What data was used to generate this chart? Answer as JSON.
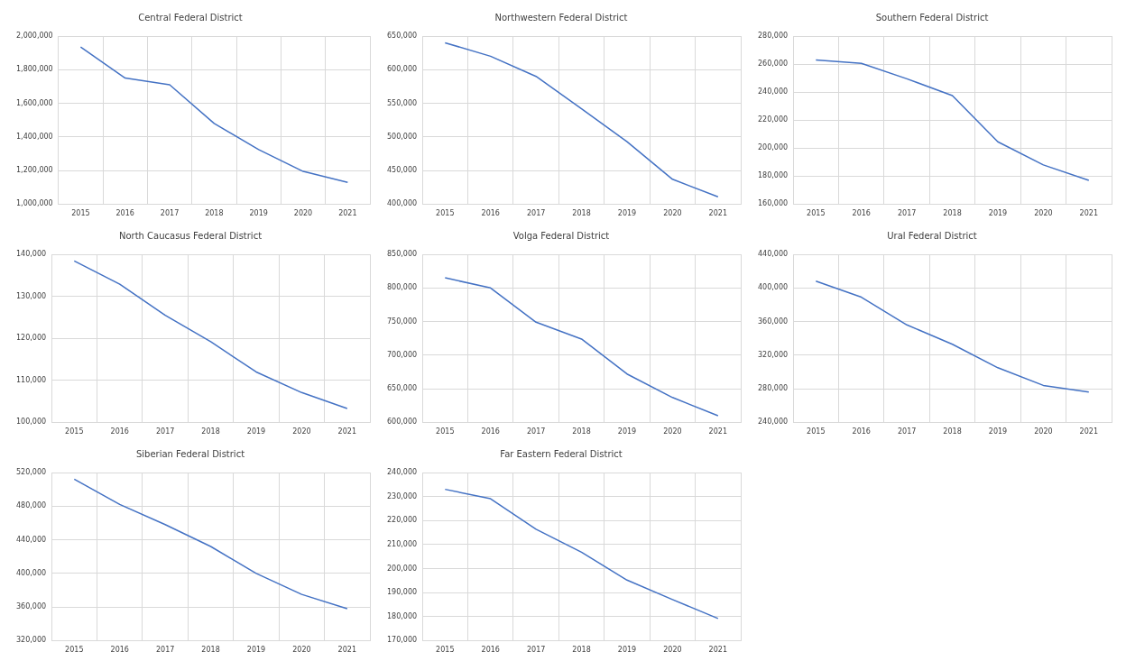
{
  "chart_data": [
    {
      "type": "line",
      "title": "Central Federal District",
      "categories": [
        "2015",
        "2016",
        "2017",
        "2018",
        "2019",
        "2020",
        "2021"
      ],
      "values": [
        1935000,
        1750000,
        1710000,
        1480000,
        1325000,
        1195000,
        1130000
      ],
      "color": "#4472c4",
      "ylim": [
        1000000,
        2000000
      ],
      "yticks": [
        {
          "value": 1000000,
          "label": "1,000,000"
        },
        {
          "value": 1200000,
          "label": "1,200,000"
        },
        {
          "value": 1400000,
          "label": "1,400,000"
        },
        {
          "value": 1600000,
          "label": "1,600,000"
        },
        {
          "value": 1800000,
          "label": "1,800,000"
        },
        {
          "value": 2000000,
          "label": "2,000,000"
        }
      ],
      "grid": true
    },
    {
      "type": "line",
      "title": "Northwestern Federal District",
      "categories": [
        "2015",
        "2016",
        "2017",
        "2018",
        "2019",
        "2020",
        "2021"
      ],
      "values": [
        640000,
        620000,
        590000,
        542000,
        493000,
        437000,
        411000
      ],
      "color": "#4472c4",
      "ylim": [
        400000,
        650000
      ],
      "yticks": [
        {
          "value": 400000,
          "label": "400,000"
        },
        {
          "value": 450000,
          "label": "450,000"
        },
        {
          "value": 500000,
          "label": "500,000"
        },
        {
          "value": 550000,
          "label": "550,000"
        },
        {
          "value": 600000,
          "label": "600,000"
        },
        {
          "value": 650000,
          "label": "650,000"
        }
      ],
      "grid": true
    },
    {
      "type": "line",
      "title": "Southern Federal District",
      "categories": [
        "2015",
        "2016",
        "2017",
        "2018",
        "2019",
        "2020",
        "2021"
      ],
      "values": [
        263000,
        260500,
        249500,
        237500,
        204500,
        188000,
        177000
      ],
      "color": "#4472c4",
      "ylim": [
        160000,
        280000
      ],
      "yticks": [
        {
          "value": 160000,
          "label": "160,000"
        },
        {
          "value": 180000,
          "label": "180,000"
        },
        {
          "value": 200000,
          "label": "200,000"
        },
        {
          "value": 220000,
          "label": "220,000"
        },
        {
          "value": 240000,
          "label": "240,000"
        },
        {
          "value": 260000,
          "label": "260,000"
        },
        {
          "value": 280000,
          "label": "280,000"
        }
      ],
      "grid": true
    },
    {
      "type": "line",
      "title": "North Caucasus Federal District",
      "categories": [
        "2015",
        "2016",
        "2017",
        "2018",
        "2019",
        "2020",
        "2021"
      ],
      "values": [
        138400,
        132900,
        125500,
        119200,
        112000,
        107100,
        103300
      ],
      "color": "#4472c4",
      "ylim": [
        100000,
        140000
      ],
      "yticks": [
        {
          "value": 100000,
          "label": "100,000"
        },
        {
          "value": 110000,
          "label": "110,000"
        },
        {
          "value": 120000,
          "label": "120,000"
        },
        {
          "value": 130000,
          "label": "130,000"
        },
        {
          "value": 140000,
          "label": "140,000"
        }
      ],
      "grid": true
    },
    {
      "type": "line",
      "title": "Volga Federal District",
      "categories": [
        "2015",
        "2016",
        "2017",
        "2018",
        "2019",
        "2020",
        "2021"
      ],
      "values": [
        815000,
        800000,
        749000,
        724000,
        672000,
        637000,
        610000
      ],
      "color": "#4472c4",
      "ylim": [
        600000,
        850000
      ],
      "yticks": [
        {
          "value": 600000,
          "label": "600,000"
        },
        {
          "value": 650000,
          "label": "650,000"
        },
        {
          "value": 700000,
          "label": "700,000"
        },
        {
          "value": 750000,
          "label": "750,000"
        },
        {
          "value": 800000,
          "label": "800,000"
        },
        {
          "value": 850000,
          "label": "850,000"
        }
      ],
      "grid": true
    },
    {
      "type": "line",
      "title": "Ural Federal District",
      "categories": [
        "2015",
        "2016",
        "2017",
        "2018",
        "2019",
        "2020",
        "2021"
      ],
      "values": [
        408000,
        389000,
        356000,
        333000,
        305000,
        284000,
        276000
      ],
      "color": "#4472c4",
      "ylim": [
        240000,
        440000
      ],
      "yticks": [
        {
          "value": 240000,
          "label": "240,000"
        },
        {
          "value": 280000,
          "label": "280,000"
        },
        {
          "value": 320000,
          "label": "320,000"
        },
        {
          "value": 360000,
          "label": "360,000"
        },
        {
          "value": 400000,
          "label": "400,000"
        },
        {
          "value": 440000,
          "label": "440,000"
        }
      ],
      "grid": true
    },
    {
      "type": "line",
      "title": "Siberian Federal District",
      "categories": [
        "2015",
        "2016",
        "2017",
        "2018",
        "2019",
        "2020",
        "2021"
      ],
      "values": [
        512000,
        482000,
        458000,
        432000,
        400000,
        375000,
        358000
      ],
      "color": "#4472c4",
      "ylim": [
        320000,
        520000
      ],
      "yticks": [
        {
          "value": 320000,
          "label": "320,000"
        },
        {
          "value": 360000,
          "label": "360,000"
        },
        {
          "value": 400000,
          "label": "400,000"
        },
        {
          "value": 440000,
          "label": "440,000"
        },
        {
          "value": 480000,
          "label": "480,000"
        },
        {
          "value": 520000,
          "label": "520,000"
        }
      ],
      "grid": true
    },
    {
      "type": "line",
      "title": "Far Eastern Federal District",
      "categories": [
        "2015",
        "2016",
        "2017",
        "2018",
        "2019",
        "2020",
        "2021"
      ],
      "values": [
        233000,
        229100,
        216400,
        206800,
        195200,
        187100,
        179200
      ],
      "color": "#4472c4",
      "ylim": [
        170000,
        240000
      ],
      "yticks": [
        {
          "value": 170000,
          "label": "170,000"
        },
        {
          "value": 180000,
          "label": "180,000"
        },
        {
          "value": 190000,
          "label": "190,000"
        },
        {
          "value": 200000,
          "label": "200,000"
        },
        {
          "value": 210000,
          "label": "210,000"
        },
        {
          "value": 220000,
          "label": "220,000"
        },
        {
          "value": 230000,
          "label": "230,000"
        },
        {
          "value": 240000,
          "label": "240,000"
        }
      ],
      "grid": true
    }
  ]
}
